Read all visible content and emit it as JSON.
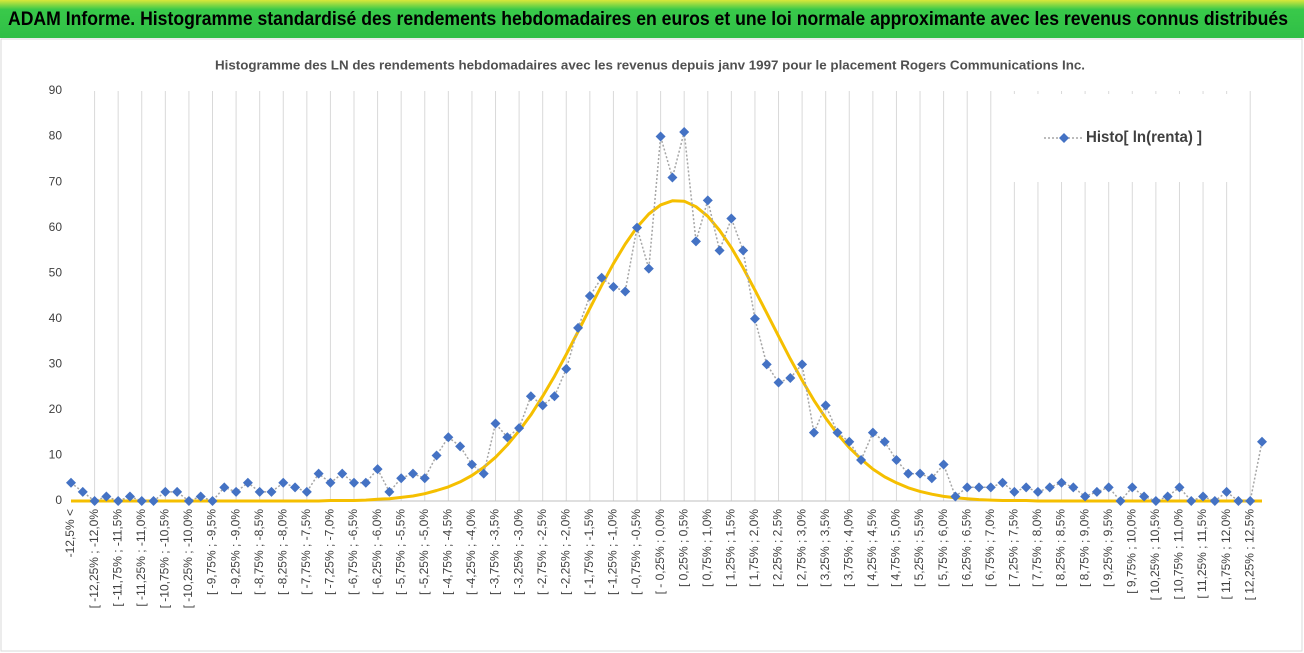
{
  "header": {
    "title": "ADAM Informe. Histogramme standardisé des rendements hebdomadaires en euros et une loi normale approximante avec les revenus connus distribués"
  },
  "chart_data": {
    "type": "line",
    "title": "Histogramme des LN des rendements hebdomadaires avec les revenus depuis janv 1997 pour le placement Rogers Communications Inc.",
    "categories": [
      "-12,5% <",
      null,
      "[ -12,25% ; -12,0%",
      null,
      "[ -11,75% ; -11,5%",
      null,
      "[ -11,25% ; -11,0%",
      null,
      "[ -10,75% ; -10,5%",
      null,
      "[ -10,25% ; -10,0%",
      null,
      "[ -9,75% ; -9,5%",
      null,
      "[ -9,25% ; -9,0%",
      null,
      "[ -8,75% ; -8,5%",
      null,
      "[ -8,25% ; -8,0%",
      null,
      "[ -7,75% ; -7,5%",
      null,
      "[ -7,25% ; -7,0%",
      null,
      "[ -6,75% ; -6,5%",
      null,
      "[ -6,25% ; -6,0%",
      null,
      "[ -5,75% ; -5,5%",
      null,
      "[ -5,25% ; -5,0%",
      null,
      "[ -4,75% ; -4,5%",
      null,
      "[ -4,25% ; -4,0%",
      null,
      "[ -3,75% ; -3,5%",
      null,
      "[ -3,25% ; -3,0%",
      null,
      "[ -2,75% ; -2,5%",
      null,
      "[ -2,25% ; -2,0%",
      null,
      "[ -1,75% ; -1,5%",
      null,
      "[ -1,25% ; -1,0%",
      null,
      "[ -0,75% ; -0,5%",
      null,
      "[ - 0,25% ; 0,0%",
      null,
      "[ 0,25% ; 0,5%",
      null,
      "[ 0,75% ; 1,0%",
      null,
      "[ 1,25% ; 1,5%",
      null,
      "[ 1,75% ; 2,0%",
      null,
      "[ 2,25% ; 2,5%",
      null,
      "[ 2,75% ; 3,0%",
      null,
      "[ 3,25% ; 3,5%",
      null,
      "[ 3,75% ; 4,0%",
      null,
      "[ 4,25% ; 4,5%",
      null,
      "[ 4,75% ; 5,0%",
      null,
      "[ 5,25% ; 5,5%",
      null,
      "[ 5,75% ; 6,0%",
      null,
      "[ 6,25% ; 6,5%",
      null,
      "[ 6,75% ; 7,0%",
      null,
      "[ 7,25% ; 7,5%",
      null,
      "[ 7,75% ; 8,0%",
      null,
      "[ 8,25% ; 8,5%",
      null,
      "[ 8,75% ; 9,0%",
      null,
      "[ 9,25% ; 9,5%",
      null,
      "[ 9,75% ; 10,0%",
      null,
      "[ 10,25% ; 10,5%",
      null,
      "[ 10,75% ; 11,0%",
      null,
      "[ 11,25% ; 11,5%",
      null,
      "[ 11,75% ; 12,0%",
      null,
      "[ 12,25% ; 12,5%",
      null
    ],
    "series": [
      {
        "name": "Histo[ ln(renta) ]",
        "color": "#4472c4",
        "values": [
          4,
          2,
          0,
          1,
          0,
          1,
          0,
          0,
          2,
          2,
          0,
          1,
          0,
          3,
          2,
          4,
          2,
          2,
          4,
          3,
          2,
          6,
          4,
          6,
          4,
          4,
          7,
          2,
          5,
          6,
          5,
          10,
          14,
          12,
          8,
          6,
          17,
          14,
          16,
          23,
          21,
          23,
          29,
          38,
          45,
          49,
          47,
          46,
          60,
          51,
          80,
          71,
          81,
          57,
          66,
          55,
          62,
          55,
          40,
          30,
          26,
          27,
          30,
          15,
          21,
          15,
          13,
          9,
          15,
          13,
          9,
          6,
          6,
          5,
          8,
          1,
          3,
          3,
          3,
          4,
          2,
          3,
          2,
          3,
          4,
          3,
          1,
          2,
          3,
          0,
          3,
          1,
          0,
          1,
          3,
          0,
          1,
          0,
          2,
          0,
          0,
          13
        ]
      },
      {
        "color": "#f5bf00",
        "values": [
          0,
          0,
          0,
          0,
          0,
          0,
          0,
          0,
          0,
          0,
          0,
          0,
          0,
          0,
          0,
          0,
          0,
          0,
          0,
          0,
          0,
          0,
          0.1,
          0.1,
          0.1,
          0.2,
          0.4,
          0.5,
          0.8,
          1.1,
          1.6,
          2.3,
          3.1,
          4.2,
          5.6,
          7.4,
          9.6,
          12.3,
          15.4,
          18.9,
          23.0,
          27.4,
          32.2,
          37.2,
          42.3,
          47.3,
          52.1,
          56.4,
          60.1,
          63.0,
          65.0,
          65.9,
          65.8,
          64.6,
          62.5,
          59.4,
          55.6,
          51.2,
          46.3,
          41.3,
          36.2,
          31.2,
          26.5,
          22.1,
          18.2,
          14.7,
          11.7,
          9.2,
          7.0,
          5.3,
          4.0,
          2.9,
          2.1,
          1.5,
          1.0,
          0.7,
          0.5,
          0.3,
          0.2,
          0.1,
          0.1,
          0.1,
          0,
          0,
          0,
          0,
          0,
          0,
          0,
          0,
          0,
          0,
          0,
          0,
          0,
          0,
          0,
          0,
          0,
          0,
          0,
          0
        ]
      }
    ],
    "ylim": [
      0,
      90
    ],
    "yticks": [
      0,
      10,
      20,
      30,
      40,
      50,
      60,
      70,
      80,
      90
    ],
    "grid": true,
    "legend": "top-right"
  }
}
